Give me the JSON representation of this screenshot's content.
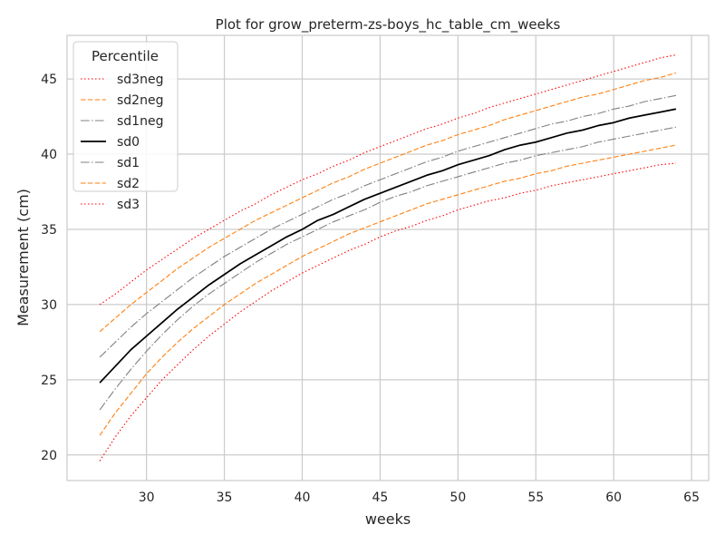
{
  "chart_data": {
    "type": "line",
    "title": "Plot for grow_preterm-zs-boys_hc_table_cm_weeks",
    "xlabel": "weeks",
    "ylabel": "Measurement (cm)",
    "xlim": [
      24.9,
      66.1
    ],
    "ylim": [
      18.3,
      47.9
    ],
    "xticks": [
      30,
      35,
      40,
      45,
      50,
      55,
      60,
      65
    ],
    "yticks": [
      20,
      25,
      30,
      35,
      40,
      45
    ],
    "grid": true,
    "legend": {
      "title": "Percentile",
      "placement": "top-left"
    },
    "x": [
      27,
      28,
      29,
      30,
      31,
      32,
      33,
      34,
      35,
      36,
      37,
      38,
      39,
      40,
      41,
      42,
      43,
      44,
      45,
      46,
      47,
      48,
      49,
      50,
      51,
      52,
      53,
      54,
      55,
      56,
      57,
      58,
      59,
      60,
      61,
      62,
      63,
      64
    ],
    "series": [
      {
        "name": "sd3neg",
        "color": "#ff0000",
        "dash": "dotted",
        "values": [
          19.6,
          21.2,
          22.6,
          23.8,
          25.0,
          26.0,
          27.0,
          27.9,
          28.7,
          29.5,
          30.2,
          30.9,
          31.5,
          32.1,
          32.6,
          33.1,
          33.6,
          34.0,
          34.5,
          34.9,
          35.2,
          35.6,
          35.9,
          36.3,
          36.6,
          36.9,
          37.1,
          37.4,
          37.6,
          37.9,
          38.1,
          38.3,
          38.5,
          38.7,
          38.9,
          39.1,
          39.3,
          39.4
        ]
      },
      {
        "name": "sd2neg",
        "color": "#ff7f0e",
        "dash": "dashed",
        "values": [
          21.3,
          22.8,
          24.1,
          25.4,
          26.5,
          27.5,
          28.4,
          29.2,
          30.0,
          30.7,
          31.4,
          32.0,
          32.6,
          33.2,
          33.7,
          34.2,
          34.7,
          35.1,
          35.5,
          35.9,
          36.3,
          36.7,
          37.0,
          37.3,
          37.6,
          37.9,
          38.2,
          38.4,
          38.7,
          38.9,
          39.2,
          39.4,
          39.6,
          39.8,
          40.0,
          40.2,
          40.4,
          40.6
        ]
      },
      {
        "name": "sd1neg",
        "color": "#808080",
        "dash": "dashdot",
        "values": [
          23.0,
          24.4,
          25.7,
          26.9,
          28.0,
          29.0,
          29.9,
          30.7,
          31.4,
          32.1,
          32.8,
          33.4,
          34.0,
          34.5,
          35.0,
          35.5,
          35.9,
          36.3,
          36.8,
          37.2,
          37.5,
          37.9,
          38.2,
          38.5,
          38.8,
          39.1,
          39.4,
          39.6,
          39.9,
          40.1,
          40.3,
          40.5,
          40.8,
          41.0,
          41.2,
          41.4,
          41.6,
          41.8
        ]
      },
      {
        "name": "sd0",
        "color": "#000000",
        "dash": "solid",
        "values": [
          24.8,
          25.9,
          27.0,
          27.9,
          28.8,
          29.7,
          30.5,
          31.3,
          32.0,
          32.7,
          33.3,
          33.9,
          34.5,
          35.0,
          35.6,
          36.0,
          36.5,
          37.0,
          37.4,
          37.8,
          38.2,
          38.6,
          38.9,
          39.3,
          39.6,
          39.9,
          40.3,
          40.6,
          40.8,
          41.1,
          41.4,
          41.6,
          41.9,
          42.1,
          42.4,
          42.6,
          42.8,
          43.0
        ]
      },
      {
        "name": "sd1",
        "color": "#808080",
        "dash": "dashdot",
        "values": [
          26.5,
          27.5,
          28.5,
          29.4,
          30.2,
          31.0,
          31.8,
          32.5,
          33.2,
          33.8,
          34.4,
          35.0,
          35.5,
          36.0,
          36.5,
          37.0,
          37.4,
          37.9,
          38.3,
          38.7,
          39.1,
          39.5,
          39.8,
          40.2,
          40.5,
          40.8,
          41.1,
          41.4,
          41.7,
          42.0,
          42.2,
          42.5,
          42.7,
          43.0,
          43.2,
          43.5,
          43.7,
          43.9
        ]
      },
      {
        "name": "sd2",
        "color": "#ff7f0e",
        "dash": "dashed",
        "values": [
          28.2,
          29.1,
          30.0,
          30.8,
          31.6,
          32.4,
          33.1,
          33.8,
          34.4,
          35.0,
          35.6,
          36.1,
          36.6,
          37.1,
          37.6,
          38.1,
          38.5,
          39.0,
          39.4,
          39.8,
          40.2,
          40.6,
          40.9,
          41.3,
          41.6,
          41.9,
          42.3,
          42.6,
          42.9,
          43.2,
          43.5,
          43.8,
          44.0,
          44.3,
          44.6,
          44.9,
          45.1,
          45.4
        ]
      },
      {
        "name": "sd3",
        "color": "#ff0000",
        "dash": "dotted",
        "values": [
          30.0,
          30.7,
          31.5,
          32.3,
          33.0,
          33.7,
          34.4,
          35.0,
          35.6,
          36.2,
          36.7,
          37.3,
          37.8,
          38.3,
          38.7,
          39.2,
          39.6,
          40.1,
          40.5,
          40.9,
          41.3,
          41.7,
          42.0,
          42.4,
          42.7,
          43.1,
          43.4,
          43.7,
          44.0,
          44.3,
          44.6,
          44.9,
          45.2,
          45.5,
          45.8,
          46.1,
          46.4,
          46.6
        ]
      }
    ]
  }
}
